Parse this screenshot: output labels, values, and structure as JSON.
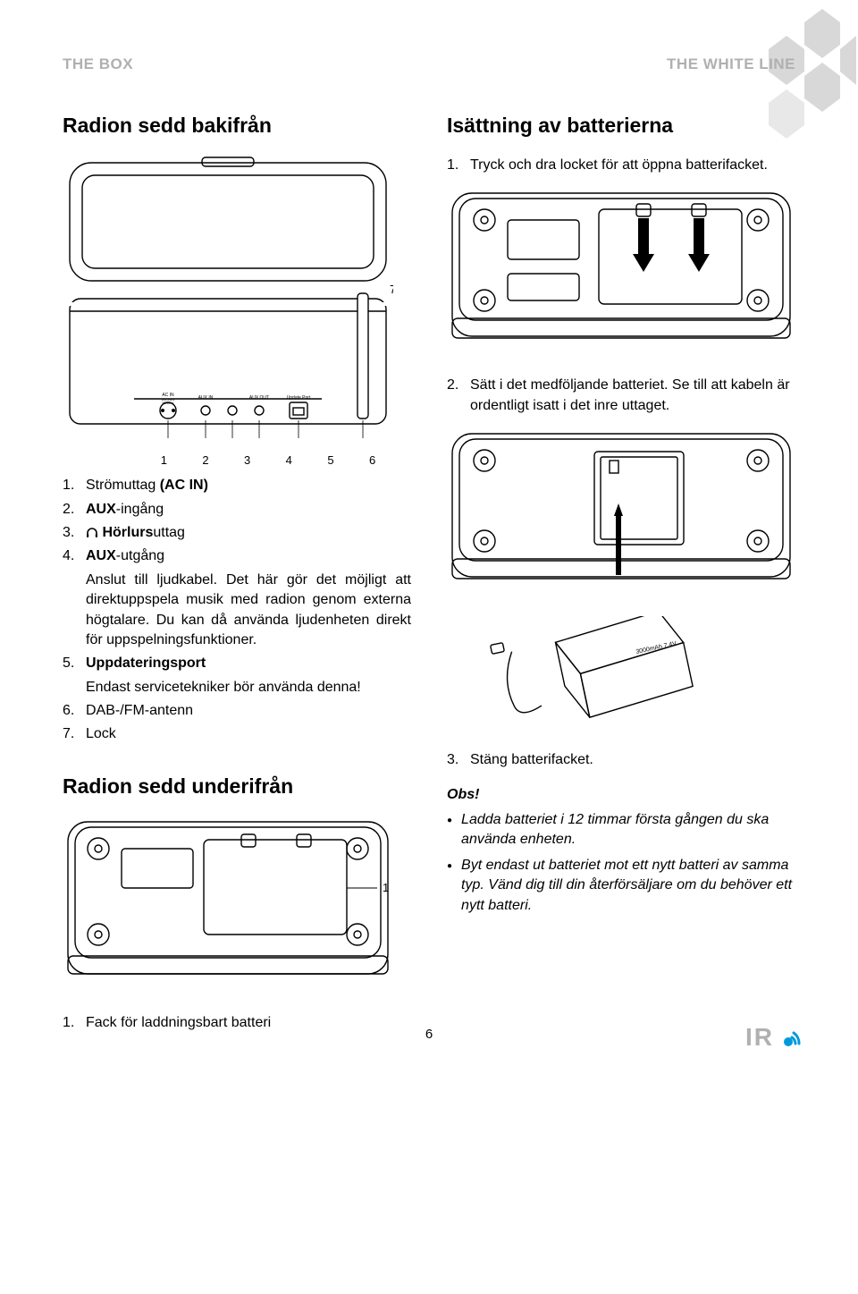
{
  "header": {
    "left": "THE BOX",
    "right": "THE WHITE LINE"
  },
  "left": {
    "title1": "Radion sedd bakifrån",
    "callout7": "7",
    "portLabelsRow": [
      "1",
      "2",
      "3",
      "4",
      "5",
      "6"
    ],
    "portLabels": {
      "ac": "AC IN",
      "aux_in": "AUX IN",
      "aux_out": "AUX OUT",
      "update": "Update Port",
      "ac_sub1": "100-240V",
      "ac_sub2": "50/60Hz"
    },
    "list": [
      {
        "n": "1.",
        "html": "Strömuttag <b>(AC IN)</b>"
      },
      {
        "n": "2.",
        "html": "<b>AUX</b>-ingång"
      },
      {
        "n": "3.",
        "html": "<span class='headphone'><svg viewBox='0 0 14 12'><path d='M2 8 V6 a5 5 0 0 1 10 0 V8' fill='none' stroke='#000' stroke-width='1.6'/><rect x='1' y='7' width='2.2' height='4' rx='1' fill='#000'/><rect x='10.8' y='7' width='2.2' height='4' rx='1' fill='#000'/></svg></span> <b>Hörlurs</b>uttag"
      },
      {
        "n": "4.",
        "html": "<b>AUX</b>-utgång"
      },
      {
        "n": "",
        "html": "Anslut till ljudkabel. Det här gör det möjligt att direktuppspela musik med radion genom externa högtalare. Du kan då använda ljudenheten direkt för uppspelningsfunktioner.",
        "cls": "justify"
      },
      {
        "n": "5.",
        "html": "<b>Uppdateringsport</b>"
      },
      {
        "n": "",
        "html": "Endast servicetekniker bör använda denna!"
      },
      {
        "n": "6.",
        "html": "DAB-/FM-antenn"
      },
      {
        "n": "7.",
        "html": "Lock"
      }
    ],
    "title2": "Radion sedd underifrån",
    "callout1": "1",
    "bottomItem": {
      "n": "1.",
      "text": "Fack för laddningsbart batteri"
    }
  },
  "right": {
    "title": "Isättning av batterierna",
    "step1": {
      "n": "1.",
      "text": "Tryck och dra locket för att öppna batterifacket."
    },
    "step2": {
      "n": "2.",
      "text": "Sätt i det medföljande batteriet. Se till att kabeln är ordentligt isatt i det inre uttaget."
    },
    "batteryLabel": "3000mAh 7.4V",
    "step3": {
      "n": "3.",
      "text": "Stäng batterifacket."
    },
    "noteHead": "Obs!",
    "notes": [
      "Ladda batteriet i 12 timmar första gången du ska använda enheten.",
      "Byt endast ut batteriet mot ett nytt batteri av samma typ. Vänd dig till din återförsäljare om du behöver ett nytt batteri."
    ]
  },
  "pageNumber": "6",
  "logo": "IR",
  "colors": {
    "grayText": "#b0b0b0",
    "snowflake": "#d8d8d8",
    "logoAccent": "#0099dd"
  }
}
